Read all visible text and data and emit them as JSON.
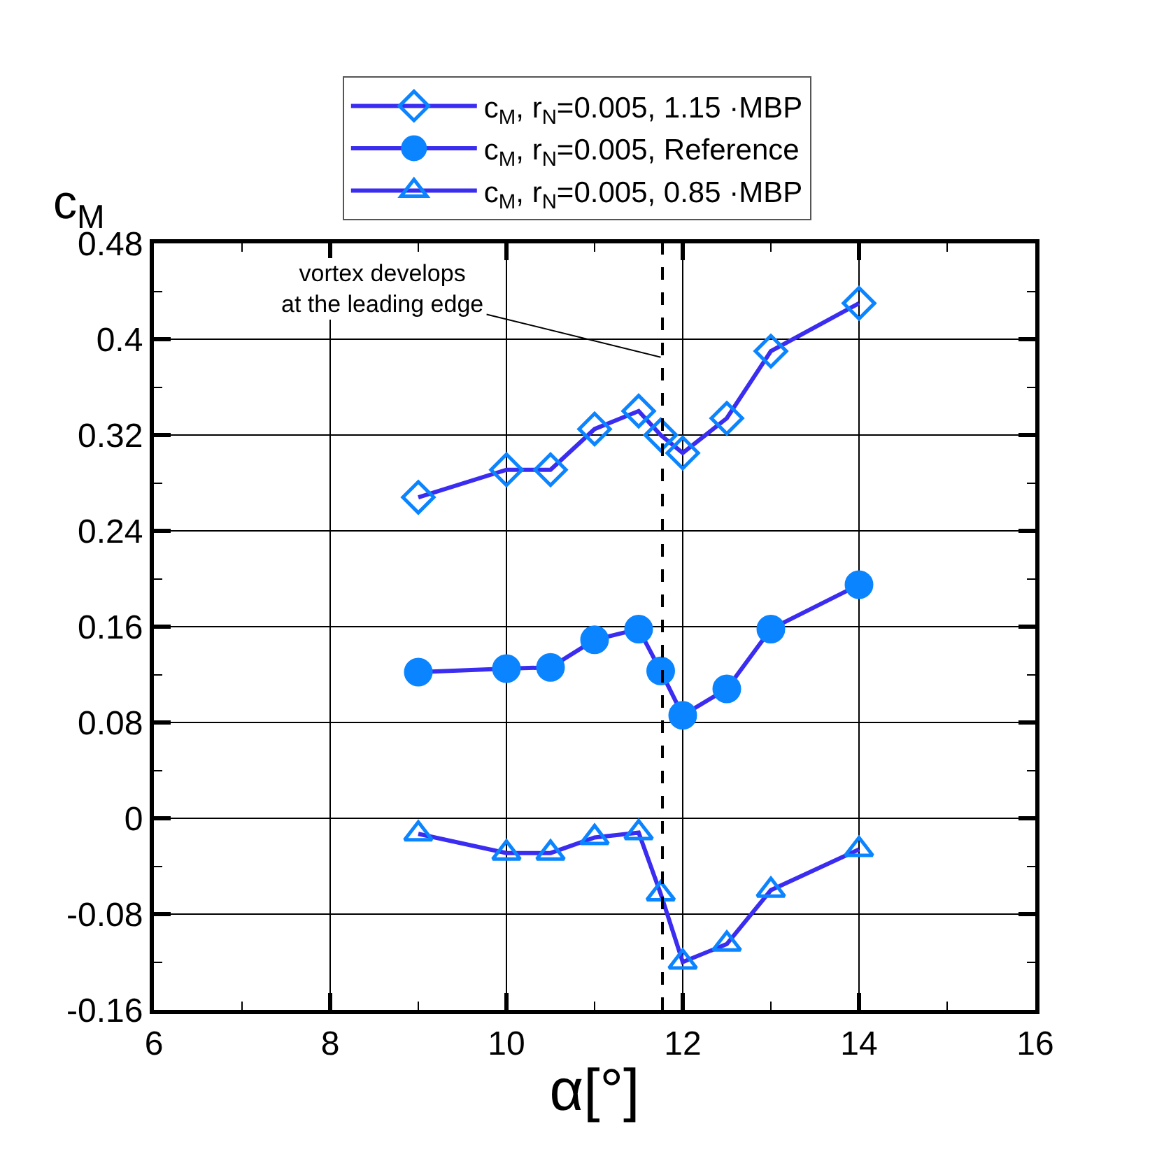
{
  "chart_data": {
    "type": "line",
    "xlabel": "α[°]",
    "ylabel": "c$_{M}$",
    "x": [
      9,
      10,
      10.5,
      11,
      11.5,
      11.75,
      12,
      12.5,
      13,
      14
    ],
    "series": [
      {
        "name": "c$_{M}$, r$_{N}$=0.005, 1.15 ·MBP",
        "color": "#3a2cf0",
        "marker": "diamond",
        "values": [
          0.268,
          0.291,
          0.291,
          0.325,
          0.34,
          0.32,
          0.305,
          0.334,
          0.39,
          0.43
        ]
      },
      {
        "name": "c$_{M}$, r$_{N}$=0.005, Reference",
        "color": "#3a2cf0",
        "marker": "circle",
        "values": [
          0.122,
          0.125,
          0.126,
          0.149,
          0.158,
          0.123,
          0.086,
          0.108,
          0.158,
          0.195
        ]
      },
      {
        "name": "c$_{M}$, r$_{N}$=0.005, 0.85 ·MBP",
        "color": "#3a2cf0",
        "marker": "triangle",
        "values": [
          -0.013,
          -0.029,
          -0.029,
          -0.016,
          -0.012,
          -0.063,
          -0.12,
          -0.105,
          -0.06,
          -0.026
        ]
      }
    ],
    "xlim": [
      6,
      16
    ],
    "xticks": [
      6,
      {
        "value": 7,
        "label": null
      },
      8,
      {
        "value": 9,
        "label": null
      },
      10,
      {
        "value": 11,
        "label": null
      },
      12,
      {
        "value": 13,
        "label": null
      },
      14,
      {
        "value": 15,
        "label": null
      },
      16
    ],
    "ylim": [
      -0.16,
      0.48
    ],
    "yticks": [
      -0.16,
      {
        "value": -0.12,
        "label": null
      },
      -0.08,
      {
        "value": -0.04,
        "label": null
      },
      0,
      {
        "value": 0.04,
        "label": null
      },
      0.08,
      {
        "value": 0.12,
        "label": null
      },
      0.16,
      {
        "value": 0.2,
        "label": null
      },
      0.24,
      {
        "value": 0.28,
        "label": null
      },
      0.32,
      {
        "value": 0.36,
        "label": null
      },
      0.4,
      {
        "value": 0.44,
        "label": null
      },
      0.48
    ],
    "grid": true,
    "legend": "top",
    "line_style": "solid",
    "ref_lines": [
      {
        "axis": "x",
        "value": 11.77,
        "line_style": "dashed",
        "color": "#000000"
      }
    ],
    "annotations": [
      {
        "text": "vortex develops\nat the leading edge",
        "x": 11.75,
        "y": 0.385
      }
    ]
  }
}
